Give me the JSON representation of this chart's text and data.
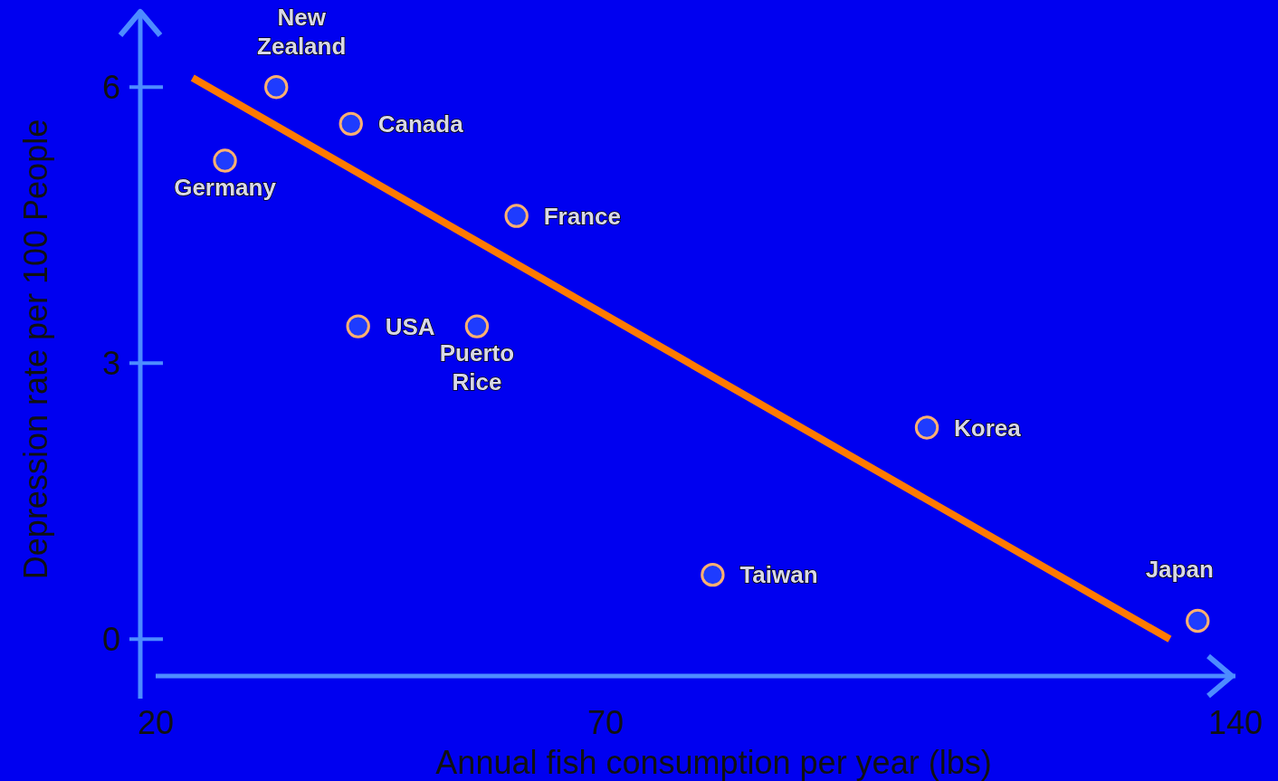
{
  "chart_data": {
    "type": "scatter",
    "xlabel": "Annual fish consumption per year (lbs)",
    "ylabel": "Depression rate per 100 People",
    "xlim": [
      20,
      140
    ],
    "ylim": [
      -0.4,
      6.7
    ],
    "xticks": [
      20,
      70,
      140
    ],
    "yticks": [
      0,
      3,
      6
    ],
    "grid": false,
    "legend": false,
    "marker": "circle",
    "series": [
      {
        "color": "#1e3cff",
        "x": [
          33.4,
          41.7,
          27.7,
          60.1,
          42.5,
          55.7,
          105.7,
          81.9,
          135.8
        ],
        "values": [
          6.0,
          5.6,
          5.2,
          4.6,
          3.4,
          3.4,
          2.3,
          0.7,
          0.2
        ]
      },
      {
        "type": "line",
        "marker": "none",
        "color": "#ff7a00",
        "x": [
          24.1,
          132.7
        ],
        "values": [
          6.1,
          0.0
        ]
      }
    ],
    "annotations": [
      {
        "text": "New Zealand",
        "x": 33.4,
        "y": 6.0
      },
      {
        "text": "Canada",
        "x": 41.7,
        "y": 5.6
      },
      {
        "text": "Germany",
        "x": 27.7,
        "y": 5.2
      },
      {
        "text": "France",
        "x": 60.1,
        "y": 4.6
      },
      {
        "text": "USA",
        "x": 42.5,
        "y": 3.4
      },
      {
        "text": "Puerto Rice",
        "x": 55.7,
        "y": 3.4
      },
      {
        "text": "Korea",
        "x": 105.7,
        "y": 2.3
      },
      {
        "text": "Taiwan",
        "x": 81.9,
        "y": 0.7
      },
      {
        "text": "Japan",
        "x": 135.8,
        "y": 0.2
      }
    ]
  }
}
